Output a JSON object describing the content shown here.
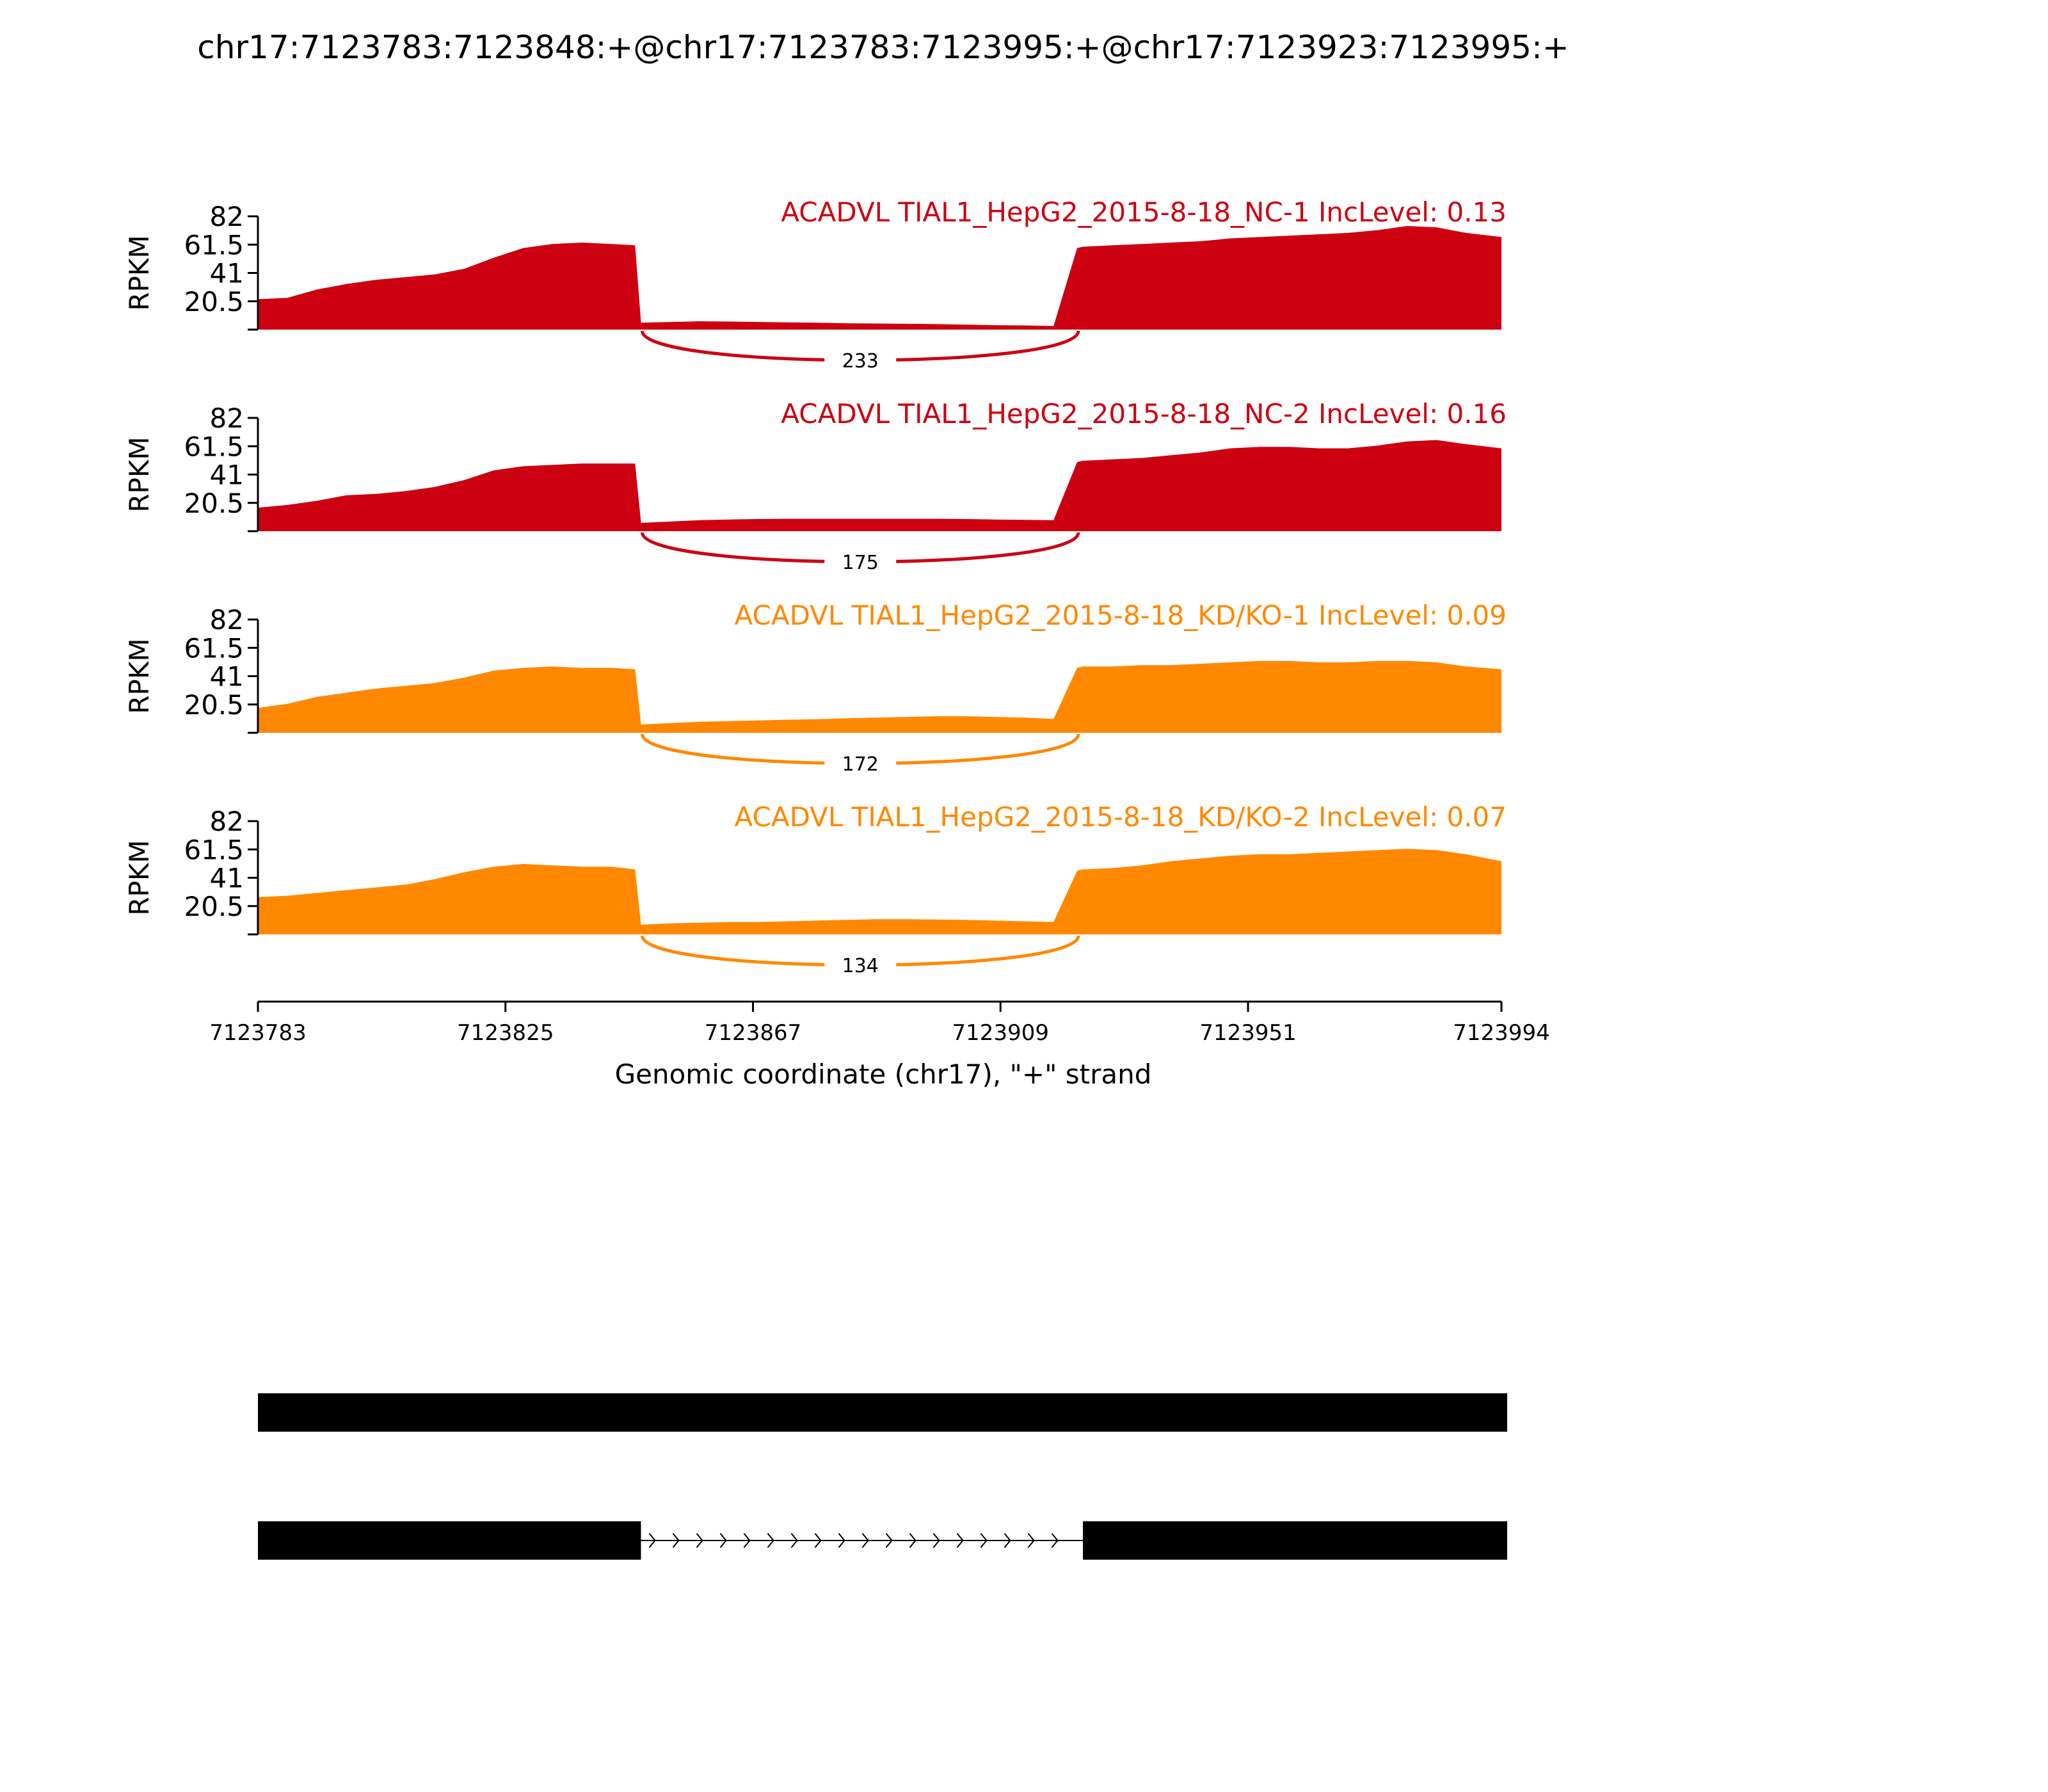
{
  "title": "chr17:7123783:7123848:+@chr17:7123783:7123995:+@chr17:7123923:7123995:+",
  "colors": {
    "nc": "#cc0011",
    "kd": "#ff8800",
    "axis": "#000000",
    "text": "#000000"
  },
  "chart_data": {
    "type": "area",
    "title": "chr17:7123783:7123848:+@chr17:7123783:7123995:+@chr17:7123923:7123995:+",
    "xlabel": "Genomic coordinate (chr17), \"+\" strand",
    "ylabel": "RPKM",
    "xlim": [
      7123783,
      7123994
    ],
    "ylim": [
      0,
      82
    ],
    "x_ticks": [
      "7123783",
      "7123825",
      "7123867",
      "7123909",
      "7123951",
      "7123994"
    ],
    "y_ticks": [
      "20.5",
      "41",
      "61.5",
      "82"
    ],
    "x": [
      7123783,
      7123788,
      7123793,
      7123798,
      7123803,
      7123808,
      7123813,
      7123818,
      7123823,
      7123828,
      7123833,
      7123838,
      7123843,
      7123847,
      7123848,
      7123853,
      7123858,
      7123863,
      7123868,
      7123873,
      7123878,
      7123883,
      7123888,
      7123893,
      7123898,
      7123903,
      7123908,
      7123913,
      7123918,
      7123922,
      7123923,
      7123928,
      7123933,
      7123938,
      7123943,
      7123948,
      7123953,
      7123958,
      7123963,
      7123968,
      7123973,
      7123978,
      7123983,
      7123988,
      7123994
    ],
    "series": [
      {
        "name": "ACADVL TIAL1_HepG2_2015-8-18_NC-1 IncLevel: 0.13",
        "group": "nc",
        "junction": 233,
        "values": [
          22,
          23,
          29,
          33,
          36,
          38,
          40,
          44,
          52,
          59,
          62,
          63,
          62,
          61,
          5,
          5.5,
          6,
          5.8,
          5.5,
          5.2,
          5,
          4.6,
          4.4,
          4.2,
          4,
          3.6,
          3.2,
          3,
          2.6,
          59,
          60,
          61,
          62,
          63,
          64,
          66,
          67,
          68,
          69,
          70,
          72,
          75,
          74,
          70,
          67
        ]
      },
      {
        "name": "ACADVL TIAL1_HepG2_2015-8-18_NC-2 IncLevel: 0.16",
        "group": "nc",
        "junction": 175,
        "values": [
          17,
          19,
          22,
          26,
          27,
          29,
          32,
          37,
          44,
          47,
          48,
          49,
          49,
          49,
          6,
          7,
          8,
          8.5,
          8.8,
          9,
          9,
          9,
          9,
          9,
          9,
          8.8,
          8.5,
          8.2,
          8,
          50,
          51,
          52,
          53,
          55,
          57,
          60,
          61,
          61,
          60,
          60,
          62,
          65,
          66,
          63,
          60
        ]
      },
      {
        "name": "ACADVL TIAL1_HepG2_2015-8-18_KD/KO-1 IncLevel: 0.09",
        "group": "kd",
        "junction": 172,
        "values": [
          18,
          21,
          26,
          29,
          32,
          34,
          36,
          40,
          45,
          47,
          48,
          47,
          47,
          46,
          6,
          7,
          8,
          8.5,
          9,
          9.5,
          9.8,
          10.5,
          11,
          11.5,
          12,
          12,
          11.5,
          11,
          10,
          47,
          48,
          48,
          49,
          49,
          50,
          51,
          52,
          52,
          51,
          51,
          52,
          52,
          51,
          48,
          46
        ]
      },
      {
        "name": "ACADVL TIAL1_HepG2_2015-8-18_KD/KO-2 IncLevel: 0.07",
        "group": "kd",
        "junction": 134,
        "values": [
          27,
          28,
          30,
          32,
          34,
          36,
          40,
          45,
          49,
          51,
          50,
          49,
          49,
          47,
          7,
          8,
          8.5,
          9,
          9,
          9.5,
          10,
          10.5,
          11,
          11,
          10.8,
          10.5,
          10,
          9.5,
          9,
          46,
          47,
          48,
          50,
          53,
          55,
          57,
          58,
          58,
          59,
          60,
          61,
          62,
          61,
          58,
          53
        ]
      }
    ],
    "transcripts": [
      {
        "exons": [
          [
            7123783,
            7123995
          ]
        ]
      },
      {
        "exons": [
          [
            7123783,
            7123848
          ],
          [
            7123923,
            7123995
          ]
        ]
      }
    ]
  }
}
